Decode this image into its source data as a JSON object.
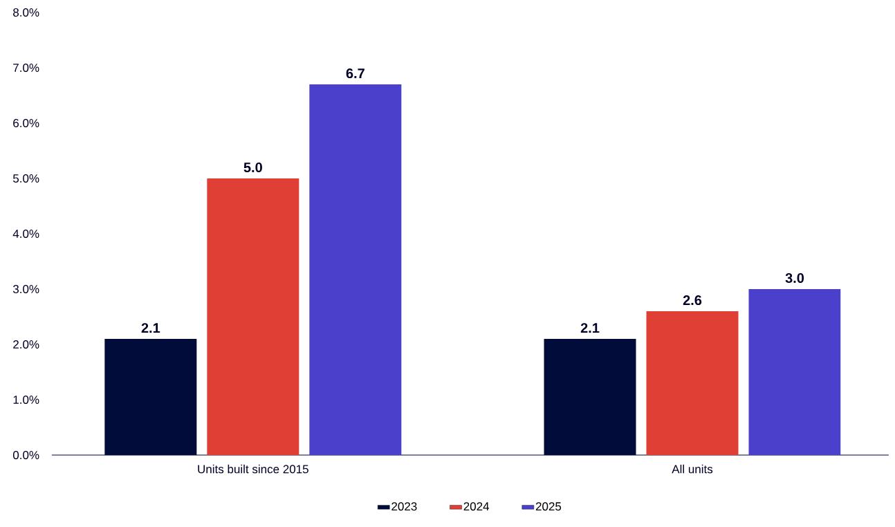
{
  "chart_data": {
    "type": "bar",
    "categories": [
      "Units built since 2015",
      "All units"
    ],
    "series": [
      {
        "name": "2023",
        "color": "#020c3b",
        "values": [
          2.1,
          2.1
        ],
        "value_labels": [
          "2.1",
          "2.1"
        ]
      },
      {
        "name": "2024",
        "color": "#e03f35",
        "values": [
          5.0,
          2.6
        ],
        "value_labels": [
          "5.0",
          "2.6"
        ]
      },
      {
        "name": "2025",
        "color": "#4a40cc",
        "values": [
          6.7,
          3.0
        ],
        "value_labels": [
          "6.7",
          "3.0"
        ]
      }
    ],
    "ylim": [
      0,
      8
    ],
    "yticks": [
      {
        "value": 0,
        "label": "0.0%"
      },
      {
        "value": 1,
        "label": "1.0%"
      },
      {
        "value": 2,
        "label": "2.0%"
      },
      {
        "value": 3,
        "label": "3.0%"
      },
      {
        "value": 4,
        "label": "4.0%"
      },
      {
        "value": 5,
        "label": "5.0%"
      },
      {
        "value": 6,
        "label": "6.0%"
      },
      {
        "value": 7,
        "label": "7.0%"
      },
      {
        "value": 8,
        "label": "8.0%"
      }
    ],
    "grid": false,
    "legend": "bottom"
  }
}
